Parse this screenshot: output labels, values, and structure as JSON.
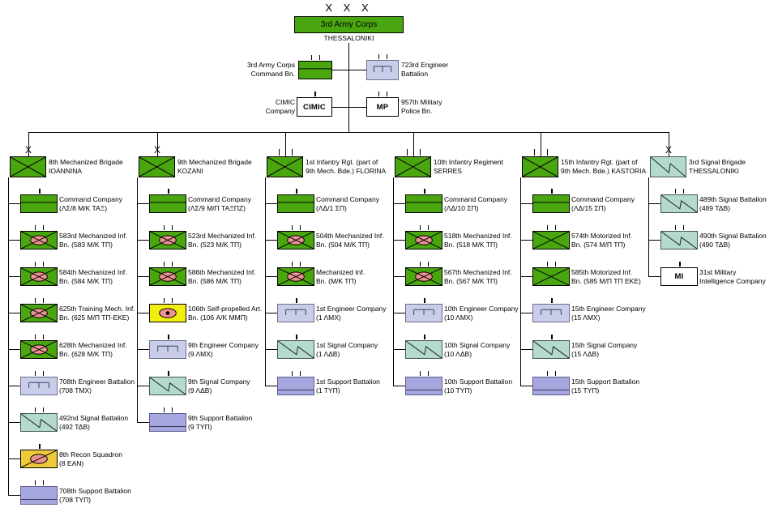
{
  "colors": {
    "green": "#4aa60f",
    "teal": "#b3dacb",
    "lavender": "#c9cdea",
    "purple": "#a7a7e0",
    "gold": "#eec93a",
    "yellow": "#f2ee0e",
    "pink": "#ec9292",
    "white": "#ffffff",
    "line": "#000000"
  },
  "top": {
    "echelon": "X X X",
    "name": "3rd Army Corps",
    "location": "THESSALONIKI"
  },
  "corps_units": [
    {
      "lines": [
        "3rd Army Corps",
        "Command Bn."
      ],
      "symbol": "command",
      "fill": "green",
      "ticks": 2
    },
    {
      "lines": [
        "723rd Engineer",
        "Battalion"
      ],
      "symbol": "engineer",
      "fill": "lavender",
      "ticks": 2
    },
    {
      "lines": [
        "CIMIC",
        "Company"
      ],
      "symbol": "text",
      "symbol_text": "CIMIC",
      "fill": "white",
      "ticks": 1
    },
    {
      "lines": [
        "957th Military",
        "Police Bn."
      ],
      "symbol": "text",
      "symbol_text": "MP",
      "fill": "white",
      "ticks": 2
    }
  ],
  "columns": [
    {
      "header": {
        "echelon": "X",
        "lines": [
          "8th Mechanized Brigade",
          "IOANNINA"
        ],
        "symbol": "infantry",
        "fill": "green"
      },
      "units": [
        {
          "lines": [
            "Command Company",
            "(ΛΣ/8 Μ/Κ ΤΑΞ)"
          ],
          "symbol": "command",
          "fill": "green",
          "ticks": 1
        },
        {
          "lines": [
            "583rd Mechanized Inf.",
            "Bn. (583 Μ/Κ ΤΠ)"
          ],
          "symbol": "mech",
          "fill": "green",
          "ticks": 2
        },
        {
          "lines": [
            "584th Mechanized Inf.",
            "Bn. (584 Μ/Κ ΤΠ)"
          ],
          "symbol": "mech",
          "fill": "green",
          "ticks": 2
        },
        {
          "lines": [
            "625th Training Mech. Inf.",
            "Bn. (625 Μ/Π ΤΠ-ΕΚΕ)"
          ],
          "symbol": "mech",
          "fill": "green",
          "ticks": 2
        },
        {
          "lines": [
            "628th Mechanized Inf.",
            "Bn. (628 Μ/Κ ΤΠ)"
          ],
          "symbol": "mech",
          "fill": "green",
          "ticks": 2
        },
        {
          "lines": [
            "708th Engineer Battalion",
            "(708 ΤΜΧ)"
          ],
          "symbol": "engineer",
          "fill": "lavender",
          "ticks": 2
        },
        {
          "lines": [
            "492nd Signal Battalion",
            "(492 ΤΔΒ)"
          ],
          "symbol": "signal",
          "fill": "teal",
          "ticks": 2
        },
        {
          "lines": [
            "8th Recon Squadron",
            "(8 ΕΑΝ)"
          ],
          "symbol": "recon",
          "fill": "gold",
          "ticks": 1
        },
        {
          "lines": [
            "708th Support Battalion",
            "(708 ΤΥΠ)"
          ],
          "symbol": "support",
          "fill": "purple",
          "ticks": 2
        }
      ]
    },
    {
      "header": {
        "echelon": "X",
        "lines": [
          "9th Mechanized Brigade",
          "KOZANI"
        ],
        "symbol": "infantry",
        "fill": "green"
      },
      "units": [
        {
          "lines": [
            "Command Company",
            "(ΛΣ/9 Μ/Π ΤΑΞΠΖ)"
          ],
          "symbol": "command",
          "fill": "green",
          "ticks": 1
        },
        {
          "lines": [
            "523rd Mechanized Inf.",
            "Bn. (523 Μ/Κ ΤΠ)"
          ],
          "symbol": "mech",
          "fill": "green",
          "ticks": 2
        },
        {
          "lines": [
            "586th Mechanized Inf.",
            "Bn. (586 Μ/Κ ΤΠ)"
          ],
          "symbol": "mech",
          "fill": "green",
          "ticks": 2
        },
        {
          "lines": [
            "106th Self-propelled Art.",
            "Bn. (106 Α/Κ ΜΜΠ)"
          ],
          "symbol": "sp_art",
          "fill": "yellow",
          "ticks": 2
        },
        {
          "lines": [
            "9th Engineer Company",
            "(9 ΛΜΧ)"
          ],
          "symbol": "engineer",
          "fill": "lavender",
          "ticks": 1
        },
        {
          "lines": [
            "9th Signal Company",
            "(9 ΛΔΒ)"
          ],
          "symbol": "signal",
          "fill": "teal",
          "ticks": 1
        },
        {
          "lines": [
            "9th Support Battalion",
            "(9 ΤΥΠ)"
          ],
          "symbol": "support",
          "fill": "purple",
          "ticks": 2
        }
      ]
    },
    {
      "header": {
        "echelon": "III",
        "lines": [
          "1st Infantry Rgt. (part of",
          "9th Mech. Bde.) FLORINA"
        ],
        "symbol": "infantry",
        "fill": "green"
      },
      "units": [
        {
          "lines": [
            "Command Company",
            "(ΛΔ/1 ΣΠ)"
          ],
          "symbol": "command",
          "fill": "green",
          "ticks": 1
        },
        {
          "lines": [
            "504th Mechanized Inf.",
            "Bn. (504 Μ/Κ ΤΠ)"
          ],
          "symbol": "mech",
          "fill": "green",
          "ticks": 2
        },
        {
          "lines": [
            "Mechanized Inf.",
            "Bn. (Μ/Κ ΤΠ)"
          ],
          "symbol": "mech",
          "fill": "green",
          "ticks": 2
        },
        {
          "lines": [
            "1st Engineer Company",
            "(1 ΛΜΧ)"
          ],
          "symbol": "engineer",
          "fill": "lavender",
          "ticks": 1
        },
        {
          "lines": [
            "1st Signal Company",
            "(1 ΛΔΒ)"
          ],
          "symbol": "signal",
          "fill": "teal",
          "ticks": 1
        },
        {
          "lines": [
            "1st Support Battalion",
            "(1 ΤΥΠ)"
          ],
          "symbol": "support",
          "fill": "purple",
          "ticks": 2
        }
      ]
    },
    {
      "header": {
        "echelon": "III",
        "lines": [
          "10th Infantry Regiment",
          "SERRES"
        ],
        "symbol": "infantry",
        "fill": "green"
      },
      "units": [
        {
          "lines": [
            "Command Company",
            "(ΛΔ/10 ΣΠ)"
          ],
          "symbol": "command",
          "fill": "green",
          "ticks": 1
        },
        {
          "lines": [
            "518th Mechanized Inf.",
            "Bn. (518 Μ/Κ ΤΠ)"
          ],
          "symbol": "mech",
          "fill": "green",
          "ticks": 2
        },
        {
          "lines": [
            "567th Mechanized Inf.",
            "Bn. (567 Μ/Κ ΤΠ)"
          ],
          "symbol": "mech",
          "fill": "green",
          "ticks": 2
        },
        {
          "lines": [
            "10th Engineer Company",
            "(10 ΛΜΧ)"
          ],
          "symbol": "engineer",
          "fill": "lavender",
          "ticks": 1
        },
        {
          "lines": [
            "10th Signal Company",
            "(10 ΛΔΒ)"
          ],
          "symbol": "signal",
          "fill": "teal",
          "ticks": 1
        },
        {
          "lines": [
            "10th Support Battalion",
            "(10 ΤΥΠ)"
          ],
          "symbol": "support",
          "fill": "purple",
          "ticks": 2
        }
      ]
    },
    {
      "header": {
        "echelon": "III",
        "lines": [
          "15th Infantry Rgt. (part of",
          "9th Mech. Bde.) KASTORIA"
        ],
        "symbol": "infantry",
        "fill": "green"
      },
      "units": [
        {
          "lines": [
            "Command Company",
            "(ΛΔ/15 ΣΠ)"
          ],
          "symbol": "command",
          "fill": "green",
          "ticks": 1
        },
        {
          "lines": [
            "574th Motorized Inf.",
            "Bn. (574 Μ/Π ΤΠ)"
          ],
          "symbol": "infantry",
          "fill": "green",
          "ticks": 2
        },
        {
          "lines": [
            "585th Motorized Inf.",
            "Bn. (585 Μ/Π ΤΠ ΕΚΕ)"
          ],
          "symbol": "infantry",
          "fill": "green",
          "ticks": 2
        },
        {
          "lines": [
            "15th Engineer Company",
            "(15 ΛΜΧ)"
          ],
          "symbol": "engineer",
          "fill": "lavender",
          "ticks": 1
        },
        {
          "lines": [
            "15th Signal Company",
            "(15 ΛΔΒ)"
          ],
          "symbol": "signal",
          "fill": "teal",
          "ticks": 1
        },
        {
          "lines": [
            "15th Support Battalion",
            "(15 ΤΥΠ)"
          ],
          "symbol": "support",
          "fill": "purple",
          "ticks": 2
        }
      ]
    },
    {
      "header": {
        "echelon": "X",
        "lines": [
          "3rd Signal Brigade",
          "THESSALONIKI"
        ],
        "symbol": "signal",
        "fill": "teal"
      },
      "units": [
        {
          "lines": [
            "489th Signal Battalion",
            "(489 ΤΔΒ)"
          ],
          "symbol": "signal",
          "fill": "teal",
          "ticks": 2
        },
        {
          "lines": [
            "490th Signal Battalion",
            "(490 ΤΔΒ)"
          ],
          "symbol": "signal",
          "fill": "teal",
          "ticks": 2
        },
        {
          "lines": [
            "31st Military",
            "Intelligence Company"
          ],
          "symbol": "text",
          "symbol_text": "MI",
          "fill": "white",
          "ticks": 1
        }
      ]
    }
  ]
}
